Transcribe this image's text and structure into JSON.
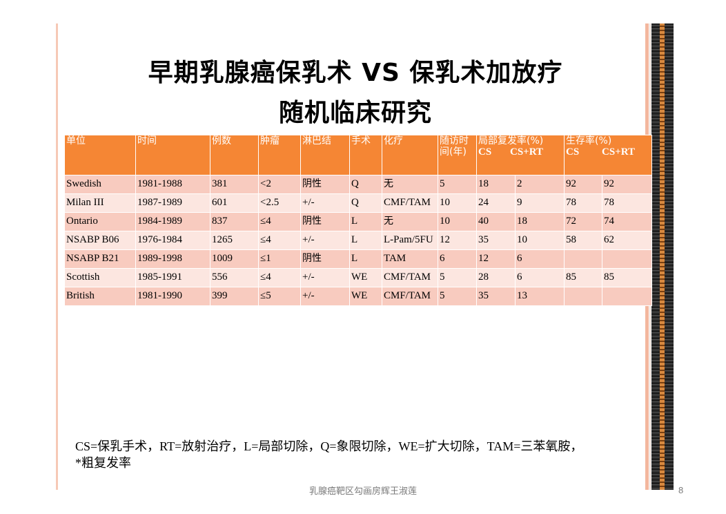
{
  "title": {
    "line1": "早期乳腺癌保乳术 VS 保乳术加放疗",
    "line2": "随机临床研究"
  },
  "table": {
    "headers": {
      "unit": "单位",
      "time": "时间",
      "cases": "例数",
      "tumor": "肿瘤",
      "lymph": "淋巴结",
      "surgery": "手术",
      "chemo": "化疗",
      "followup": "随访时间(年)",
      "local_recur": "局部复发率(%)",
      "survival": "生存率(%)",
      "cs": "CS",
      "csrt": "CS+RT"
    },
    "rows": [
      {
        "unit": "Swedish",
        "time": "1981-1988",
        "cases": "381",
        "tumor": "<2",
        "lymph": "阴性",
        "surgery": "Q",
        "chemo": "无",
        "followup": "5",
        "lr_cs": "18",
        "lr_csrt": "2",
        "sv_cs": "92",
        "sv_csrt": "92"
      },
      {
        "unit": "Milan III",
        "time": "1987-1989",
        "cases": "601",
        "tumor": "<2.5",
        "lymph": "+/-",
        "surgery": "Q",
        "chemo": "CMF/TAM",
        "followup": "10",
        "lr_cs": "24",
        "lr_csrt": "9",
        "sv_cs": "78",
        "sv_csrt": "78"
      },
      {
        "unit": "Ontario",
        "time": "1984-1989",
        "cases": "837",
        "tumor": "≤4",
        "lymph": "阴性",
        "surgery": "L",
        "chemo": "无",
        "followup": "10",
        "lr_cs": "40",
        "lr_csrt": "18",
        "sv_cs": "72",
        "sv_csrt": "74"
      },
      {
        "unit": "NSABP B06",
        "time": "1976-1984",
        "cases": "1265",
        "tumor": "≤4",
        "lymph": "+/-",
        "surgery": "L",
        "chemo": "L-Pam/5FU",
        "followup": "12",
        "lr_cs": "35",
        "lr_csrt": "10",
        "sv_cs": "58",
        "sv_csrt": "62"
      },
      {
        "unit": "NSABP B21",
        "time": "1989-1998",
        "cases": "1009",
        "tumor": "≤1",
        "lymph": "阴性",
        "surgery": "L",
        "chemo": "TAM",
        "followup": "6",
        "lr_cs": "12",
        "lr_csrt": "6",
        "sv_cs": "",
        "sv_csrt": ""
      },
      {
        "unit": "Scottish",
        "time": "1985-1991",
        "cases": "556",
        "tumor": "≤4",
        "lymph": "+/-",
        "surgery": "WE",
        "chemo": "CMF/TAM",
        "followup": "5",
        "lr_cs": "28",
        "lr_csrt": "6",
        "sv_cs": "85",
        "sv_csrt": "85"
      },
      {
        "unit": "British",
        "time": "1981-1990",
        "cases": "399",
        "tumor": "≤5",
        "lymph": "+/-",
        "surgery": "WE",
        "chemo": "CMF/TAM",
        "followup": "5",
        "lr_cs": "35",
        "lr_csrt": "13",
        "sv_cs": "",
        "sv_csrt": ""
      }
    ]
  },
  "footnote": {
    "line1": "CS=保乳手术，RT=放射治疗，L=局部切除，Q=象限切除，WE=扩大切除，TAM=三苯氧胺，",
    "line2": "*粗复发率"
  },
  "footer": "乳腺癌靶区勾画房辉王淑莲",
  "page_number": "8"
}
